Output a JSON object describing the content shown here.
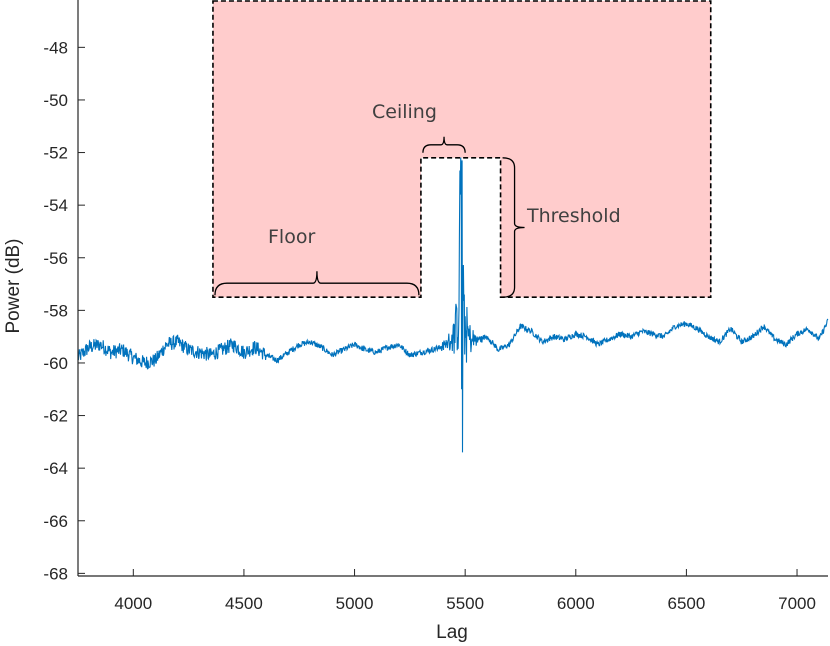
{
  "chart_data": {
    "type": "line",
    "xlabel": "Lag",
    "ylabel": "Power (dB)",
    "xlim": [
      3750,
      7140
    ],
    "ylim": [
      -68.1,
      -46.2
    ],
    "xticks": [
      4000,
      4500,
      5000,
      5500,
      6000,
      6500,
      7000
    ],
    "yticks": [
      -48,
      -50,
      -52,
      -54,
      -56,
      -58,
      -60,
      -62,
      -64,
      -66,
      -68
    ],
    "grid": false,
    "colors": {
      "series": "#0072BD",
      "region_fill": "#FFCCCC",
      "region_border": "#000000"
    },
    "series": [
      {
        "x": [
          3750,
          3800,
          3850,
          3900,
          3950,
          4000,
          4050,
          4100,
          4150,
          4200,
          4250,
          4300,
          4350,
          4400,
          4450,
          4500,
          4550,
          4600,
          4650,
          4700,
          4750,
          4800,
          4850,
          4900,
          4950,
          5000,
          5050,
          5100,
          5150,
          5200,
          5250,
          5300,
          5350,
          5400,
          5420,
          5440,
          5460,
          5470,
          5480,
          5490,
          5500,
          5520,
          5550,
          5600,
          5650,
          5700,
          5750,
          5800,
          5850,
          5900,
          5950,
          6000,
          6050,
          6100,
          6150,
          6200,
          6250,
          6300,
          6350,
          6400,
          6450,
          6500,
          6550,
          6600,
          6650,
          6700,
          6750,
          6800,
          6850,
          6900,
          6950,
          7000,
          7050,
          7100,
          7140
        ],
        "y": [
          -59.8,
          -59.4,
          -59.3,
          -59.6,
          -59.5,
          -59.8,
          -60.0,
          -59.9,
          -59.3,
          -59.2,
          -59.5,
          -59.6,
          -59.7,
          -59.5,
          -59.3,
          -59.6,
          -59.4,
          -59.7,
          -59.9,
          -59.6,
          -59.3,
          -59.2,
          -59.4,
          -59.7,
          -59.5,
          -59.3,
          -59.5,
          -59.6,
          -59.4,
          -59.3,
          -59.7,
          -59.6,
          -59.5,
          -59.4,
          -59.3,
          -59.2,
          -59.0,
          -58.7,
          -52.3,
          -58.5,
          -59.1,
          -59.3,
          -59.2,
          -59.0,
          -59.5,
          -59.3,
          -58.6,
          -58.8,
          -59.2,
          -59.0,
          -59.1,
          -58.9,
          -59.0,
          -59.3,
          -59.1,
          -58.9,
          -59.0,
          -58.8,
          -58.9,
          -59.0,
          -58.6,
          -58.5,
          -58.7,
          -59.0,
          -59.2,
          -58.7,
          -59.2,
          -59.0,
          -58.6,
          -59.1,
          -59.3,
          -58.9,
          -58.7,
          -59.1,
          -58.4
        ]
      }
    ],
    "annotations": [
      {
        "text": "Ceiling"
      },
      {
        "text": "Floor"
      },
      {
        "text": "Threshold"
      }
    ],
    "region": {
      "floor_level": -57.5,
      "ceiling_level": -52.2,
      "x_start": 4360,
      "x_end": 6610,
      "notch_start": 5300,
      "notch_end": 5660
    }
  }
}
